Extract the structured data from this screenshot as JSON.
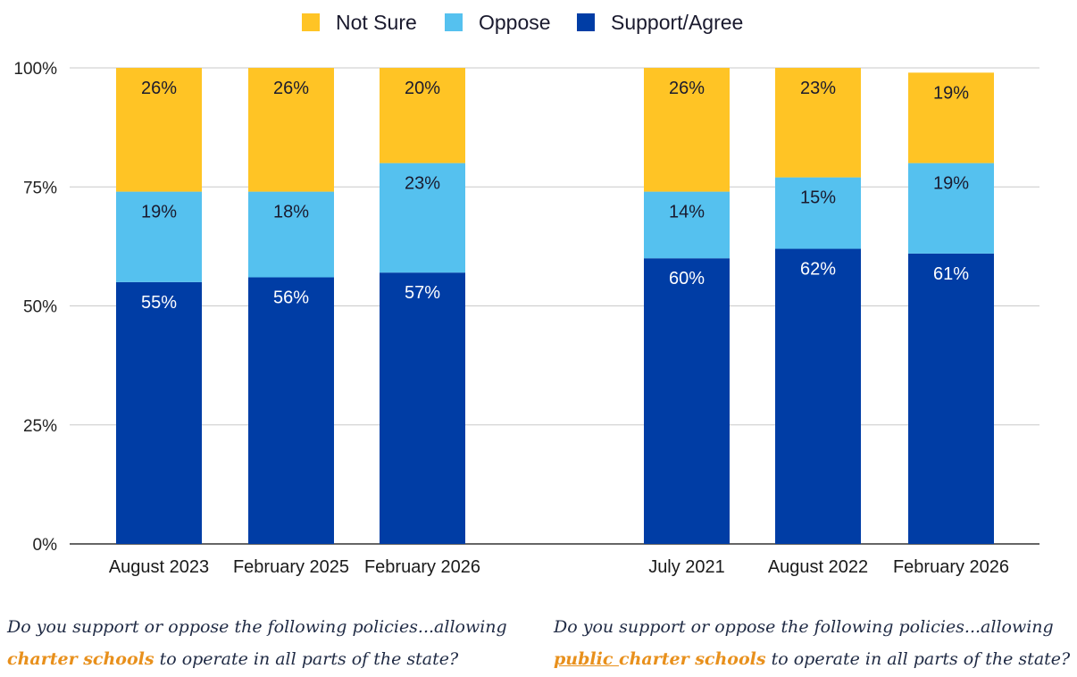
{
  "chart_data": {
    "type": "bar",
    "stacked": true,
    "ylim": [
      0,
      100
    ],
    "yticks": [
      "0%",
      "25%",
      "50%",
      "75%",
      "100%"
    ],
    "ytick_values": [
      0,
      25,
      50,
      75,
      100
    ],
    "legend_position": "top-center",
    "grid": true,
    "legend": [
      {
        "name": "Not Sure",
        "color": "#ffc425"
      },
      {
        "name": "Oppose",
        "color": "#55c1ef"
      },
      {
        "name": "Support/Agree",
        "color": "#003da5"
      }
    ],
    "groups": [
      {
        "categories": [
          "August 2023",
          "February 2025",
          "February 2026"
        ],
        "series": [
          {
            "name": "Support/Agree",
            "values": [
              55,
              56,
              57
            ],
            "labels": [
              "55%",
              "56%",
              "57%"
            ]
          },
          {
            "name": "Oppose",
            "values": [
              19,
              18,
              23
            ],
            "labels": [
              "19%",
              "18%",
              "23%"
            ]
          },
          {
            "name": "Not Sure",
            "values": [
              26,
              26,
              20
            ],
            "labels": [
              "26%",
              "26%",
              "20%"
            ]
          }
        ]
      },
      {
        "categories": [
          "July 2021",
          "August 2022",
          "February 2026"
        ],
        "series": [
          {
            "name": "Support/Agree",
            "values": [
              60,
              62,
              61
            ],
            "labels": [
              "60%",
              "62%",
              "61%"
            ]
          },
          {
            "name": "Oppose",
            "values": [
              14,
              15,
              19
            ],
            "labels": [
              "14%",
              "15%",
              "19%"
            ]
          },
          {
            "name": "Not Sure",
            "values": [
              26,
              23,
              19
            ],
            "labels": [
              "26%",
              "23%",
              "19%"
            ]
          }
        ]
      }
    ]
  },
  "captions": {
    "left": {
      "line1": "Do you support or oppose the following policies...allowing",
      "highlight": "charter schools",
      "rest": " to operate in all parts of the state?"
    },
    "right": {
      "line1": "Do you support or oppose the following policies...allowing",
      "highlight_underlined": "public ",
      "highlight": "charter schools",
      "rest": " to operate in all parts of the state?"
    }
  }
}
